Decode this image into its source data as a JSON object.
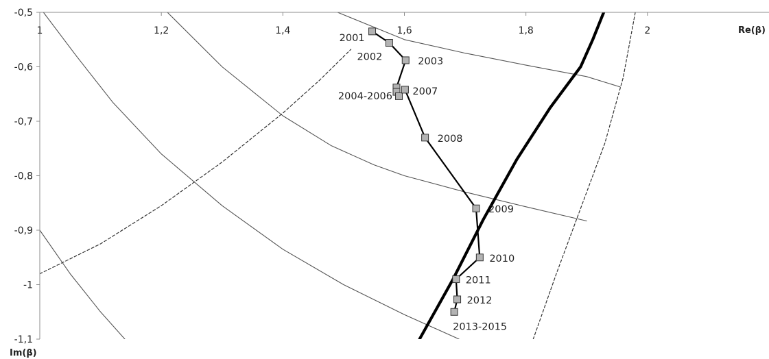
{
  "chart_data": {
    "type": "scatter",
    "title": "",
    "xlabel": "Re(β)",
    "ylabel": "Im(β)",
    "xlim": [
      1,
      2.2
    ],
    "ylim": [
      -1.1,
      -0.5
    ],
    "x_ticks": [
      {
        "value": 1,
        "label": "1"
      },
      {
        "value": 1.2,
        "label": "1,2"
      },
      {
        "value": 1.4,
        "label": "1,4"
      },
      {
        "value": 1.6,
        "label": "1,6"
      },
      {
        "value": 1.8,
        "label": "1,8"
      },
      {
        "value": 2,
        "label": "2"
      }
    ],
    "y_ticks": [
      {
        "value": -0.5,
        "label": "-0,5"
      },
      {
        "value": -0.6,
        "label": "-0,6"
      },
      {
        "value": -0.7,
        "label": "-0,7"
      },
      {
        "value": -0.8,
        "label": "-0,8"
      },
      {
        "value": -0.9,
        "label": "-0,9"
      },
      {
        "value": -1.0,
        "label": "-1"
      },
      {
        "value": -1.1,
        "label": "-1,1"
      }
    ],
    "grid": false,
    "legend": "none",
    "trajectory": {
      "color": "#000000",
      "marker_color": "#b3b3b3",
      "points": [
        {
          "x": 1.547,
          "y": -0.535,
          "label": "2001",
          "label_pos": "left"
        },
        {
          "x": 1.575,
          "y": -0.556,
          "label": "2002",
          "label_pos": "below-left"
        },
        {
          "x": 1.602,
          "y": -0.588,
          "label": "2003",
          "label_pos": "right"
        },
        {
          "x": 1.587,
          "y": -0.638,
          "label": "",
          "label_pos": "none"
        },
        {
          "x": 1.587,
          "y": -0.646,
          "label": "2004-2006",
          "label_pos": "left"
        },
        {
          "x": 1.591,
          "y": -0.654,
          "label": "",
          "label_pos": "none"
        },
        {
          "x": 1.601,
          "y": -0.642,
          "label": "2007",
          "label_pos": "right"
        },
        {
          "x": 1.634,
          "y": -0.73,
          "label": "2008",
          "label_pos": "right"
        },
        {
          "x": 1.718,
          "y": -0.86,
          "label": "2009",
          "label_pos": "right"
        },
        {
          "x": 1.724,
          "y": -0.95,
          "label": "2010",
          "label_pos": "right"
        },
        {
          "x": 1.685,
          "y": -0.99,
          "label": "2011",
          "label_pos": "right"
        },
        {
          "x": 1.687,
          "y": -1.027,
          "label": "2012",
          "label_pos": "right"
        },
        {
          "x": 1.682,
          "y": -1.05,
          "label": "2013-2015",
          "label_pos": "below-right"
        }
      ]
    },
    "curves": [
      {
        "style": "thin-solid",
        "color": "#555555",
        "points": [
          [
            1.006,
            -0.5
          ],
          [
            1.06,
            -0.58
          ],
          [
            1.12,
            -0.665
          ],
          [
            1.2,
            -0.76
          ],
          [
            1.3,
            -0.855
          ],
          [
            1.4,
            -0.935
          ],
          [
            1.5,
            -1.0
          ],
          [
            1.6,
            -1.055
          ],
          [
            1.69,
            -1.1
          ]
        ]
      },
      {
        "style": "thin-solid",
        "color": "#555555",
        "points": [
          [
            1.21,
            -0.5
          ],
          [
            1.3,
            -0.6
          ],
          [
            1.4,
            -0.69
          ],
          [
            1.48,
            -0.745
          ],
          [
            1.55,
            -0.78
          ],
          [
            1.6,
            -0.8
          ],
          [
            1.7,
            -0.83
          ],
          [
            1.8,
            -0.857
          ],
          [
            1.9,
            -0.883
          ]
        ]
      },
      {
        "style": "thin-solid",
        "color": "#555555",
        "points": [
          [
            1.49,
            -0.5
          ],
          [
            1.6,
            -0.55
          ],
          [
            1.7,
            -0.575
          ],
          [
            1.8,
            -0.597
          ],
          [
            1.9,
            -0.618
          ],
          [
            1.955,
            -0.637
          ]
        ]
      },
      {
        "style": "thin-solid",
        "color": "#555555",
        "points": [
          [
            1.0,
            -0.9
          ],
          [
            1.05,
            -0.98
          ],
          [
            1.1,
            -1.05
          ],
          [
            1.14,
            -1.1
          ]
        ]
      },
      {
        "style": "dashed",
        "color": "#333333",
        "points": [
          [
            1.0,
            -0.98
          ],
          [
            1.1,
            -0.925
          ],
          [
            1.2,
            -0.855
          ],
          [
            1.3,
            -0.775
          ],
          [
            1.4,
            -0.685
          ],
          [
            1.46,
            -0.625
          ],
          [
            1.512,
            -0.568
          ]
        ]
      },
      {
        "style": "dashed",
        "color": "#333333",
        "points": [
          [
            1.98,
            -0.5
          ],
          [
            1.96,
            -0.62
          ],
          [
            1.93,
            -0.74
          ],
          [
            1.89,
            -0.86
          ],
          [
            1.85,
            -0.98
          ],
          [
            1.812,
            -1.1
          ]
        ]
      },
      {
        "style": "thick-solid",
        "color": "#000000",
        "points": [
          [
            1.625,
            -1.1
          ],
          [
            1.68,
            -0.99
          ],
          [
            1.73,
            -0.88
          ],
          [
            1.785,
            -0.77
          ],
          [
            1.84,
            -0.675
          ],
          [
            1.89,
            -0.6
          ],
          [
            1.91,
            -0.55
          ],
          [
            1.928,
            -0.5
          ]
        ]
      }
    ]
  }
}
